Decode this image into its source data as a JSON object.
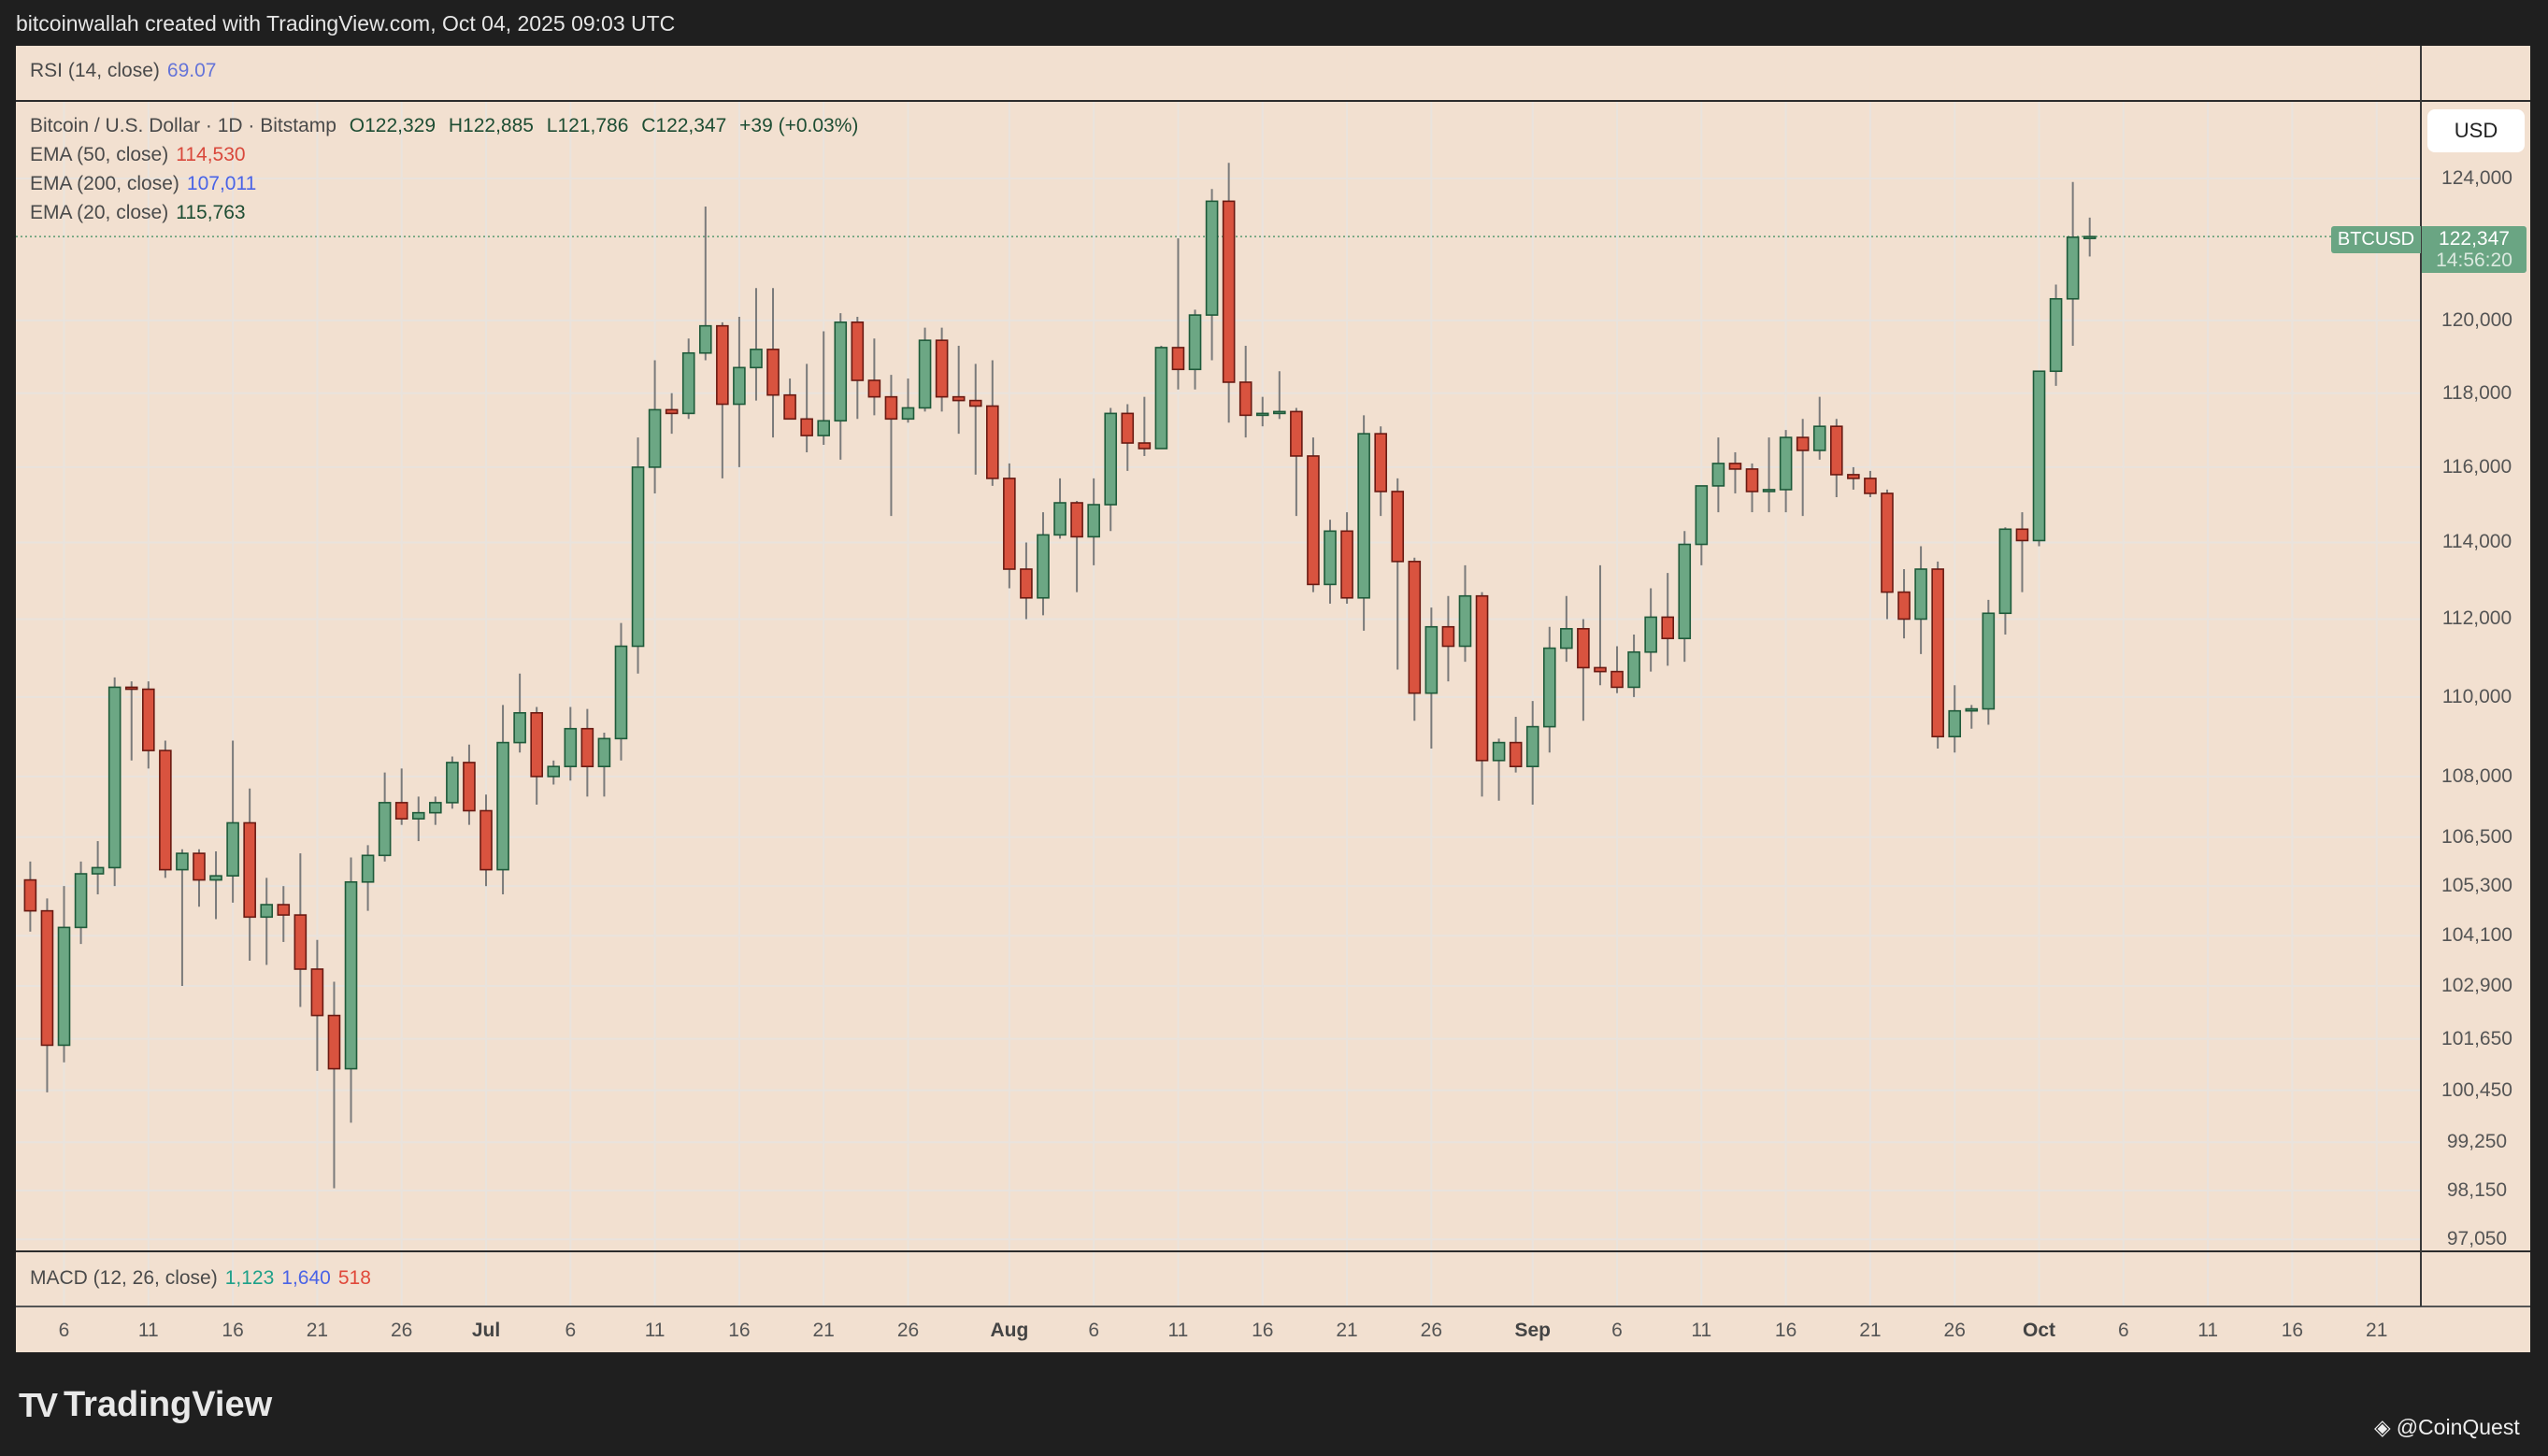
{
  "header": {
    "title": "bitcoinwallah created with TradingView.com, Oct 04, 2025 09:03 UTC"
  },
  "rsi": {
    "label": "RSI (14, close)",
    "value": "69.07",
    "color": "#6574d8"
  },
  "symbol_legend": {
    "name": "Bitcoin / U.S. Dollar · 1D · Bitstamp",
    "open": "O122,329",
    "high": "H122,885",
    "low": "L121,786",
    "close": "C122,347",
    "change": "+39 (+0.03%)"
  },
  "emas": [
    {
      "label": "EMA (50, close)",
      "value": "114,530",
      "color": "#d9483b"
    },
    {
      "label": "EMA (200, close)",
      "value": "107,011",
      "color": "#4a63e6"
    },
    {
      "label": "EMA (20, close)",
      "value": "115,763",
      "color": "#1e4d33"
    }
  ],
  "macd": {
    "label": "MACD (12, 26, close)",
    "values": [
      {
        "value": "1,123",
        "color": "#1ea089"
      },
      {
        "value": "1,640",
        "color": "#4a63e6"
      },
      {
        "value": "518",
        "color": "#e0483a"
      }
    ]
  },
  "currency_button": "USD",
  "last_price": {
    "symbol": "BTCUSD",
    "price": "122,347",
    "countdown": "14:56:20",
    "value": 122347
  },
  "branding": {
    "logo": "TradingView",
    "watermark": "@CoinQuest"
  },
  "colors": {
    "up": "#6ca784",
    "up_border": "#1f5a3a",
    "down": "#d9533f",
    "down_border": "#6a1a12",
    "wick": "#7a7a7a",
    "background": "#f2e0d0"
  },
  "chart_data": {
    "type": "candlestick",
    "title": "Bitcoin / U.S. Dollar · 1D · Bitstamp",
    "scale": "log",
    "ylim": [
      97050,
      124000
    ],
    "first_candle_day_offset_from_jul_1": -27,
    "y_ticks": [
      "124,000",
      "120,000",
      "118,000",
      "116,000",
      "114,000",
      "112,000",
      "110,000",
      "108,000",
      "106,500",
      "105,300",
      "104,100",
      "102,900",
      "101,650",
      "100,450",
      "99,250",
      "98,150",
      "97,050"
    ],
    "y_tick_values": [
      124000,
      120000,
      118000,
      116000,
      114000,
      112000,
      110000,
      108000,
      106500,
      105300,
      104100,
      102900,
      101650,
      100450,
      99250,
      98150,
      97050
    ],
    "x_ticks": [
      {
        "label": "6",
        "day": -25
      },
      {
        "label": "11",
        "day": -20
      },
      {
        "label": "16",
        "day": -15
      },
      {
        "label": "21",
        "day": -10
      },
      {
        "label": "26",
        "day": -5
      },
      {
        "label": "Jul",
        "day": 0,
        "month": true
      },
      {
        "label": "6",
        "day": 5
      },
      {
        "label": "11",
        "day": 10
      },
      {
        "label": "16",
        "day": 15
      },
      {
        "label": "21",
        "day": 20
      },
      {
        "label": "26",
        "day": 25
      },
      {
        "label": "Aug",
        "day": 31,
        "month": true
      },
      {
        "label": "6",
        "day": 36
      },
      {
        "label": "11",
        "day": 41
      },
      {
        "label": "16",
        "day": 46
      },
      {
        "label": "21",
        "day": 51
      },
      {
        "label": "26",
        "day": 56
      },
      {
        "label": "Sep",
        "day": 62,
        "month": true
      },
      {
        "label": "6",
        "day": 67
      },
      {
        "label": "11",
        "day": 72
      },
      {
        "label": "16",
        "day": 77
      },
      {
        "label": "21",
        "day": 82
      },
      {
        "label": "26",
        "day": 87
      },
      {
        "label": "Oct",
        "day": 92,
        "month": true
      },
      {
        "label": "6",
        "day": 97
      },
      {
        "label": "11",
        "day": 102
      },
      {
        "label": "16",
        "day": 107
      },
      {
        "label": "21",
        "day": 112
      }
    ],
    "ohlc": [
      [
        105450,
        105900,
        104200,
        104700
      ],
      [
        104700,
        105000,
        100400,
        101500
      ],
      [
        101500,
        105300,
        101100,
        104300
      ],
      [
        104300,
        105900,
        103900,
        105600
      ],
      [
        105600,
        106400,
        105100,
        105750
      ],
      [
        105750,
        110500,
        105300,
        110250
      ],
      [
        110250,
        110400,
        108400,
        110200
      ],
      [
        110200,
        110400,
        108200,
        108650
      ],
      [
        108650,
        108900,
        105500,
        105700
      ],
      [
        105700,
        106200,
        102900,
        106100
      ],
      [
        106100,
        106200,
        104800,
        105450
      ],
      [
        105450,
        106150,
        104500,
        105550
      ],
      [
        105550,
        108900,
        104900,
        106850
      ],
      [
        106850,
        107700,
        103500,
        104550
      ],
      [
        104550,
        105500,
        103400,
        104850
      ],
      [
        104850,
        105300,
        103950,
        104600
      ],
      [
        104600,
        106100,
        102400,
        103300
      ],
      [
        103300,
        104000,
        100900,
        102200
      ],
      [
        102200,
        103000,
        98200,
        100950
      ],
      [
        100950,
        106000,
        99700,
        105400
      ],
      [
        105400,
        106300,
        104700,
        106050
      ],
      [
        106050,
        108100,
        105900,
        107350
      ],
      [
        107350,
        108200,
        106800,
        106950
      ],
      [
        106950,
        107500,
        106400,
        107100
      ],
      [
        107100,
        107500,
        106800,
        107350
      ],
      [
        107350,
        108500,
        107200,
        108350
      ],
      [
        108350,
        108800,
        106800,
        107150
      ],
      [
        107150,
        107550,
        105300,
        105700
      ],
      [
        105700,
        109800,
        105100,
        108850
      ],
      [
        108850,
        110600,
        108600,
        109600
      ],
      [
        109600,
        109750,
        107300,
        108000
      ],
      [
        108000,
        108400,
        107800,
        108250
      ],
      [
        108250,
        109750,
        107900,
        109200
      ],
      [
        109200,
        109700,
        107500,
        108250
      ],
      [
        108250,
        109100,
        107500,
        108950
      ],
      [
        108950,
        111900,
        108400,
        111300
      ],
      [
        111300,
        116800,
        110600,
        116000
      ],
      [
        116000,
        118900,
        115300,
        117550
      ],
      [
        117550,
        118000,
        116900,
        117450
      ],
      [
        117450,
        119500,
        117300,
        119100
      ],
      [
        119100,
        123200,
        118900,
        119850
      ],
      [
        119850,
        119950,
        115700,
        117700
      ],
      [
        117700,
        120100,
        116000,
        118700
      ],
      [
        118700,
        120900,
        117800,
        119200
      ],
      [
        119200,
        120900,
        116800,
        117950
      ],
      [
        117950,
        118400,
        117300,
        117300
      ],
      [
        117300,
        118800,
        116400,
        116850
      ],
      [
        116850,
        119700,
        116600,
        117250
      ],
      [
        117250,
        120200,
        116200,
        119950
      ],
      [
        119950,
        120100,
        117300,
        118350
      ],
      [
        118350,
        119500,
        117400,
        117900
      ],
      [
        117900,
        118500,
        114700,
        117300
      ],
      [
        117300,
        118400,
        117200,
        117600
      ],
      [
        117600,
        119800,
        117500,
        119450
      ],
      [
        119450,
        119800,
        117500,
        117900
      ],
      [
        117900,
        119300,
        116900,
        117800
      ],
      [
        117800,
        118800,
        115800,
        117650
      ],
      [
        117650,
        118900,
        115500,
        115700
      ],
      [
        115700,
        116100,
        112800,
        113300
      ],
      [
        113300,
        114000,
        112000,
        112550
      ],
      [
        112550,
        114800,
        112100,
        114200
      ],
      [
        114200,
        115700,
        114100,
        115050
      ],
      [
        115050,
        115100,
        112700,
        114150
      ],
      [
        114150,
        115700,
        113400,
        115000
      ],
      [
        115000,
        117600,
        114300,
        117450
      ],
      [
        117450,
        117700,
        115900,
        116650
      ],
      [
        116650,
        117900,
        116300,
        116500
      ],
      [
        116500,
        119300,
        116500,
        119250
      ],
      [
        119250,
        122300,
        118100,
        118650
      ],
      [
        118650,
        120300,
        118100,
        120150
      ],
      [
        120150,
        123700,
        118900,
        123350
      ],
      [
        123350,
        124450,
        117200,
        118300
      ],
      [
        118300,
        119300,
        116800,
        117400
      ],
      [
        117400,
        117900,
        117100,
        117450
      ],
      [
        117450,
        118600,
        117300,
        117500
      ],
      [
        117500,
        117600,
        114700,
        116300
      ],
      [
        116300,
        116800,
        112700,
        112900
      ],
      [
        112900,
        114600,
        112400,
        114300
      ],
      [
        114300,
        114800,
        112400,
        112550
      ],
      [
        112550,
        117400,
        111700,
        116900
      ],
      [
        116900,
        117100,
        114700,
        115350
      ],
      [
        115350,
        115700,
        110700,
        113500
      ],
      [
        113500,
        113600,
        109400,
        110100
      ],
      [
        110100,
        112300,
        108700,
        111800
      ],
      [
        111800,
        112600,
        110400,
        111300
      ],
      [
        111300,
        113400,
        110900,
        112600
      ],
      [
        112600,
        112700,
        107500,
        108400
      ],
      [
        108400,
        108950,
        107400,
        108850
      ],
      [
        108850,
        109500,
        108100,
        108250
      ],
      [
        108250,
        109900,
        107300,
        109250
      ],
      [
        109250,
        111800,
        108600,
        111250
      ],
      [
        111250,
        112600,
        110900,
        111750
      ],
      [
        111750,
        112000,
        109400,
        110750
      ],
      [
        110750,
        113400,
        110300,
        110650
      ],
      [
        110650,
        111300,
        110100,
        110250
      ],
      [
        110250,
        111600,
        110000,
        111150
      ],
      [
        111150,
        112800,
        110650,
        112050
      ],
      [
        112050,
        113200,
        110800,
        111500
      ],
      [
        111500,
        114300,
        110900,
        113950
      ],
      [
        113950,
        115500,
        113400,
        115500
      ],
      [
        115500,
        116800,
        114800,
        116100
      ],
      [
        116100,
        116400,
        115300,
        115950
      ],
      [
        115950,
        116100,
        114800,
        115350
      ],
      [
        115350,
        116800,
        114800,
        115400
      ],
      [
        115400,
        117000,
        114800,
        116800
      ],
      [
        116800,
        117300,
        114700,
        116450
      ],
      [
        116450,
        117900,
        116200,
        117100
      ],
      [
        117100,
        117300,
        115200,
        115800
      ],
      [
        115800,
        116000,
        115400,
        115700
      ],
      [
        115700,
        115900,
        115200,
        115300
      ],
      [
        115300,
        115400,
        112000,
        112700
      ],
      [
        112700,
        113300,
        111500,
        112000
      ],
      [
        112000,
        113900,
        111100,
        113300
      ],
      [
        113300,
        113500,
        108700,
        109000
      ],
      [
        109000,
        110300,
        108600,
        109650
      ],
      [
        109650,
        109800,
        109200,
        109700
      ],
      [
        109700,
        112500,
        109300,
        112150
      ],
      [
        112150,
        114400,
        111600,
        114350
      ],
      [
        114350,
        114800,
        112700,
        114050
      ],
      [
        114050,
        118600,
        113900,
        118600
      ],
      [
        118600,
        121000,
        118200,
        120600
      ],
      [
        120600,
        123900,
        119300,
        122329
      ],
      [
        122329,
        122885,
        121786,
        122347
      ]
    ]
  }
}
